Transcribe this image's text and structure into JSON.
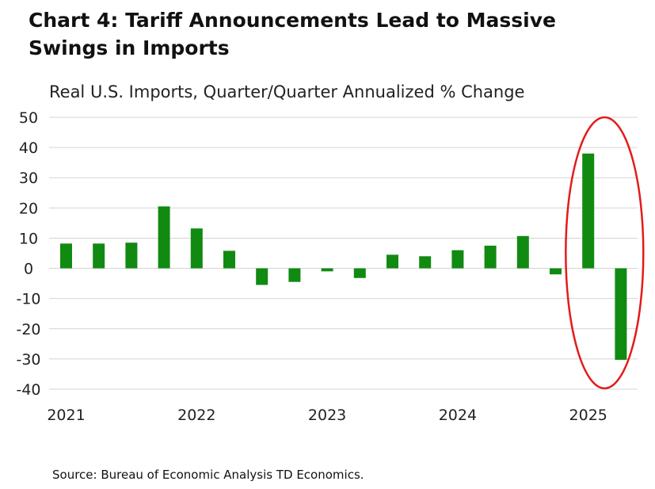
{
  "chart_data": {
    "type": "bar",
    "title": "Chart 4: Tariff Announcements Lead to Massive Swings in Imports",
    "subtitle": "Real U.S. Imports, Quarter/Quarter Annualized % Change",
    "xlabel": "",
    "ylabel": "",
    "ylim": [
      -40,
      50
    ],
    "yticks": [
      50,
      40,
      30,
      20,
      10,
      0,
      -10,
      -20,
      -30,
      -40
    ],
    "year_labels": [
      "2021",
      "2022",
      "2023",
      "2024",
      "2025"
    ],
    "categories": [
      "2021 Q1",
      "2021 Q2",
      "2021 Q3",
      "2021 Q4",
      "2022 Q1",
      "2022 Q2",
      "2022 Q3",
      "2022 Q4",
      "2023 Q1",
      "2023 Q2",
      "2023 Q3",
      "2023 Q4",
      "2024 Q1",
      "2024 Q2",
      "2024 Q3",
      "2024 Q4",
      "2025 Q1",
      "2025 Q2"
    ],
    "values": [
      8.2,
      8.2,
      8.5,
      20.5,
      13.2,
      5.8,
      -5.5,
      -4.5,
      -1.0,
      -3.2,
      4.5,
      4.0,
      6.0,
      7.5,
      10.7,
      -2.0,
      38.0,
      -30.3
    ],
    "bar_color": "#118a11",
    "highlight_color": "#e41b1b",
    "grid": true,
    "source": "Source: Bureau of Economic Analysis TD Economics."
  }
}
